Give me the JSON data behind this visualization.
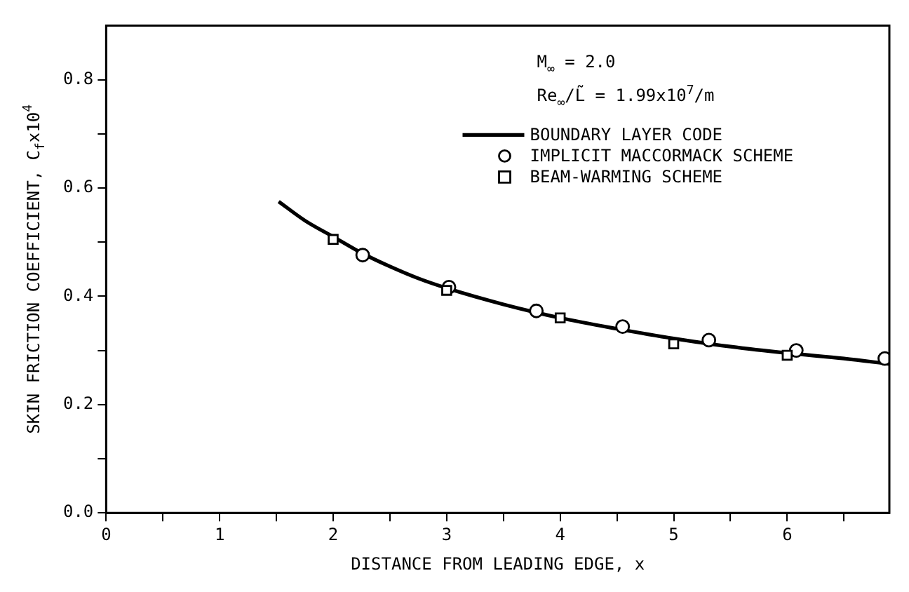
{
  "chart_data": {
    "type": "line",
    "xlabel": "DISTANCE FROM LEADING EDGE, x",
    "ylabel": "SKIN FRICTION COEFFICIENT, C$_{f}$x10$^{4}$",
    "annotations": [
      "M$_{∞}$ = 2.0",
      "Re$_{∞}$/L̃ = 1.99x10$^{7}$/m"
    ],
    "series": [
      {
        "name": "BOUNDARY LAYER CODE",
        "marker": "none",
        "line_style": "solid",
        "color": "#000000",
        "x": [
          1.52,
          1.75,
          2.0,
          2.25,
          2.5,
          2.75,
          3.0,
          3.5,
          4.0,
          4.5,
          5.0,
          5.5,
          6.0,
          6.5,
          6.9
        ],
        "values": [
          0.575,
          0.54,
          0.51,
          0.48,
          0.455,
          0.433,
          0.415,
          0.385,
          0.36,
          0.34,
          0.322,
          0.307,
          0.295,
          0.285,
          0.275
        ]
      },
      {
        "name": "IMPLICIT MACCORMACK SCHEME",
        "type": "scatter",
        "marker": "circle",
        "color": "#000000",
        "x": [
          2.26,
          3.02,
          3.79,
          4.55,
          5.31,
          6.08,
          6.86
        ],
        "values": [
          0.476,
          0.417,
          0.373,
          0.344,
          0.319,
          0.3,
          0.285
        ]
      },
      {
        "name": "BEAM-WARMING SCHEME",
        "type": "scatter",
        "marker": "square",
        "color": "#000000",
        "x": [
          2.0,
          3.0,
          4.0,
          5.0,
          6.0
        ],
        "values": [
          0.505,
          0.411,
          0.36,
          0.312,
          0.291
        ]
      }
    ],
    "xlim": [
      0,
      6.9
    ],
    "xticks": [
      0,
      {
        "value": 0.5,
        "label": null
      },
      1,
      {
        "value": 1.5,
        "label": null
      },
      2,
      {
        "value": 2.5,
        "label": null
      },
      3,
      {
        "value": 3.5,
        "label": null
      },
      4,
      {
        "value": 4.5,
        "label": null
      },
      5,
      {
        "value": 5.5,
        "label": null
      },
      6,
      {
        "value": 6.5,
        "label": null
      }
    ],
    "ylim": [
      0,
      0.9
    ],
    "yticks": [
      {
        "value": 0,
        "label": "0.0"
      },
      {
        "value": 0.1,
        "label": null
      },
      0.2,
      {
        "value": 0.3,
        "label": null
      },
      0.4,
      {
        "value": 0.5,
        "label": null
      },
      0.6,
      {
        "value": 0.7,
        "label": null
      },
      0.8
    ],
    "grid": false,
    "legend": "top right"
  }
}
